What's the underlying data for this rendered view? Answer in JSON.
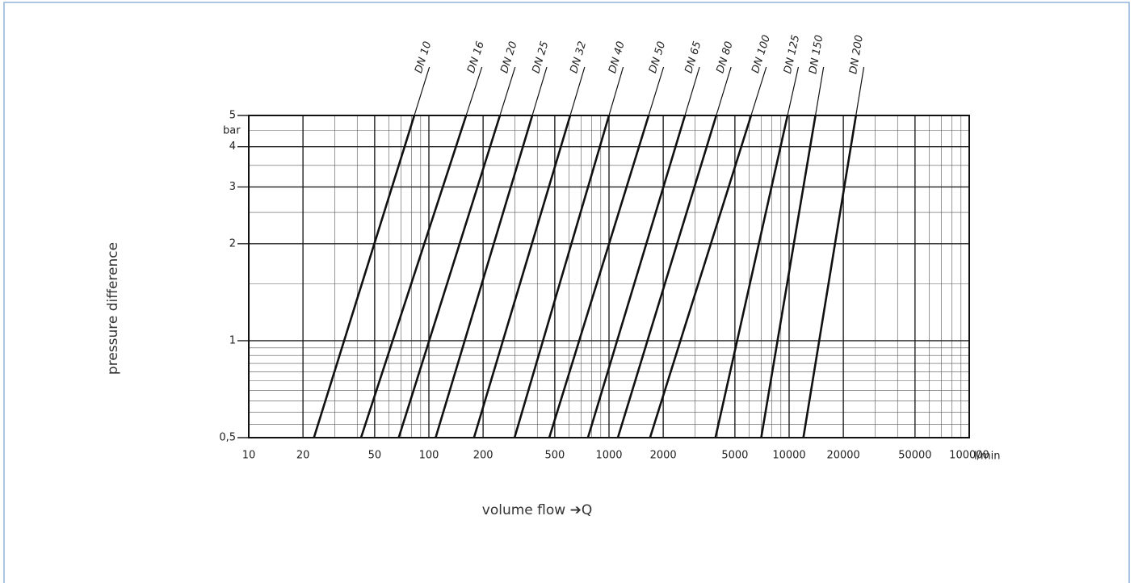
{
  "chart_data": {
    "type": "line",
    "xlabel": "volume flow ➔Q",
    "ylabel": "pressure difference",
    "x_unit": "l/min",
    "y_unit": "bar",
    "log_x": true,
    "log_y": true,
    "grid": true,
    "minor_grid": true,
    "xlim": [
      10,
      100000
    ],
    "ylim": [
      0.5,
      5
    ],
    "xticks": [
      10,
      20,
      50,
      100,
      200,
      500,
      1000,
      2000,
      5000,
      10000,
      20000,
      50000,
      100000
    ],
    "yticks": [
      {
        "value": 0.5,
        "label": "0,5"
      },
      1,
      2,
      3,
      4,
      5
    ],
    "series": [
      {
        "name": "DN 10",
        "color": "#111",
        "x": [
          23,
          83
        ],
        "values": [
          0.5,
          5
        ]
      },
      {
        "name": "DN 16",
        "color": "#111",
        "x": [
          42,
          161
        ],
        "values": [
          0.5,
          5
        ]
      },
      {
        "name": "DN 20",
        "color": "#111",
        "x": [
          68,
          248
        ],
        "values": [
          0.5,
          5
        ]
      },
      {
        "name": "DN 25",
        "color": "#111",
        "x": [
          109,
          375
        ],
        "values": [
          0.5,
          5
        ]
      },
      {
        "name": "DN 32",
        "color": "#111",
        "x": [
          178,
          609
        ],
        "values": [
          0.5,
          5
        ]
      },
      {
        "name": "DN 40",
        "color": "#111",
        "x": [
          299,
          1000
        ],
        "values": [
          0.5,
          5
        ]
      },
      {
        "name": "DN 50",
        "color": "#111",
        "x": [
          466,
          1660
        ],
        "values": [
          0.5,
          5
        ]
      },
      {
        "name": "DN 65",
        "color": "#111",
        "x": [
          764,
          2640
        ],
        "values": [
          0.5,
          5
        ]
      },
      {
        "name": "DN 80",
        "color": "#111",
        "x": [
          1120,
          3940
        ],
        "values": [
          0.5,
          5
        ]
      },
      {
        "name": "DN 100",
        "color": "#111",
        "x": [
          1690,
          6150
        ],
        "values": [
          0.5,
          5
        ]
      },
      {
        "name": "DN 125",
        "color": "#111",
        "x": [
          3900,
          9800
        ],
        "values": [
          0.5,
          5
        ]
      },
      {
        "name": "DN 150",
        "color": "#111",
        "x": [
          7000,
          14000
        ],
        "values": [
          0.5,
          5
        ]
      },
      {
        "name": "DN 200",
        "color": "#111",
        "x": [
          12000,
          23500
        ],
        "values": [
          0.5,
          5
        ]
      }
    ]
  }
}
